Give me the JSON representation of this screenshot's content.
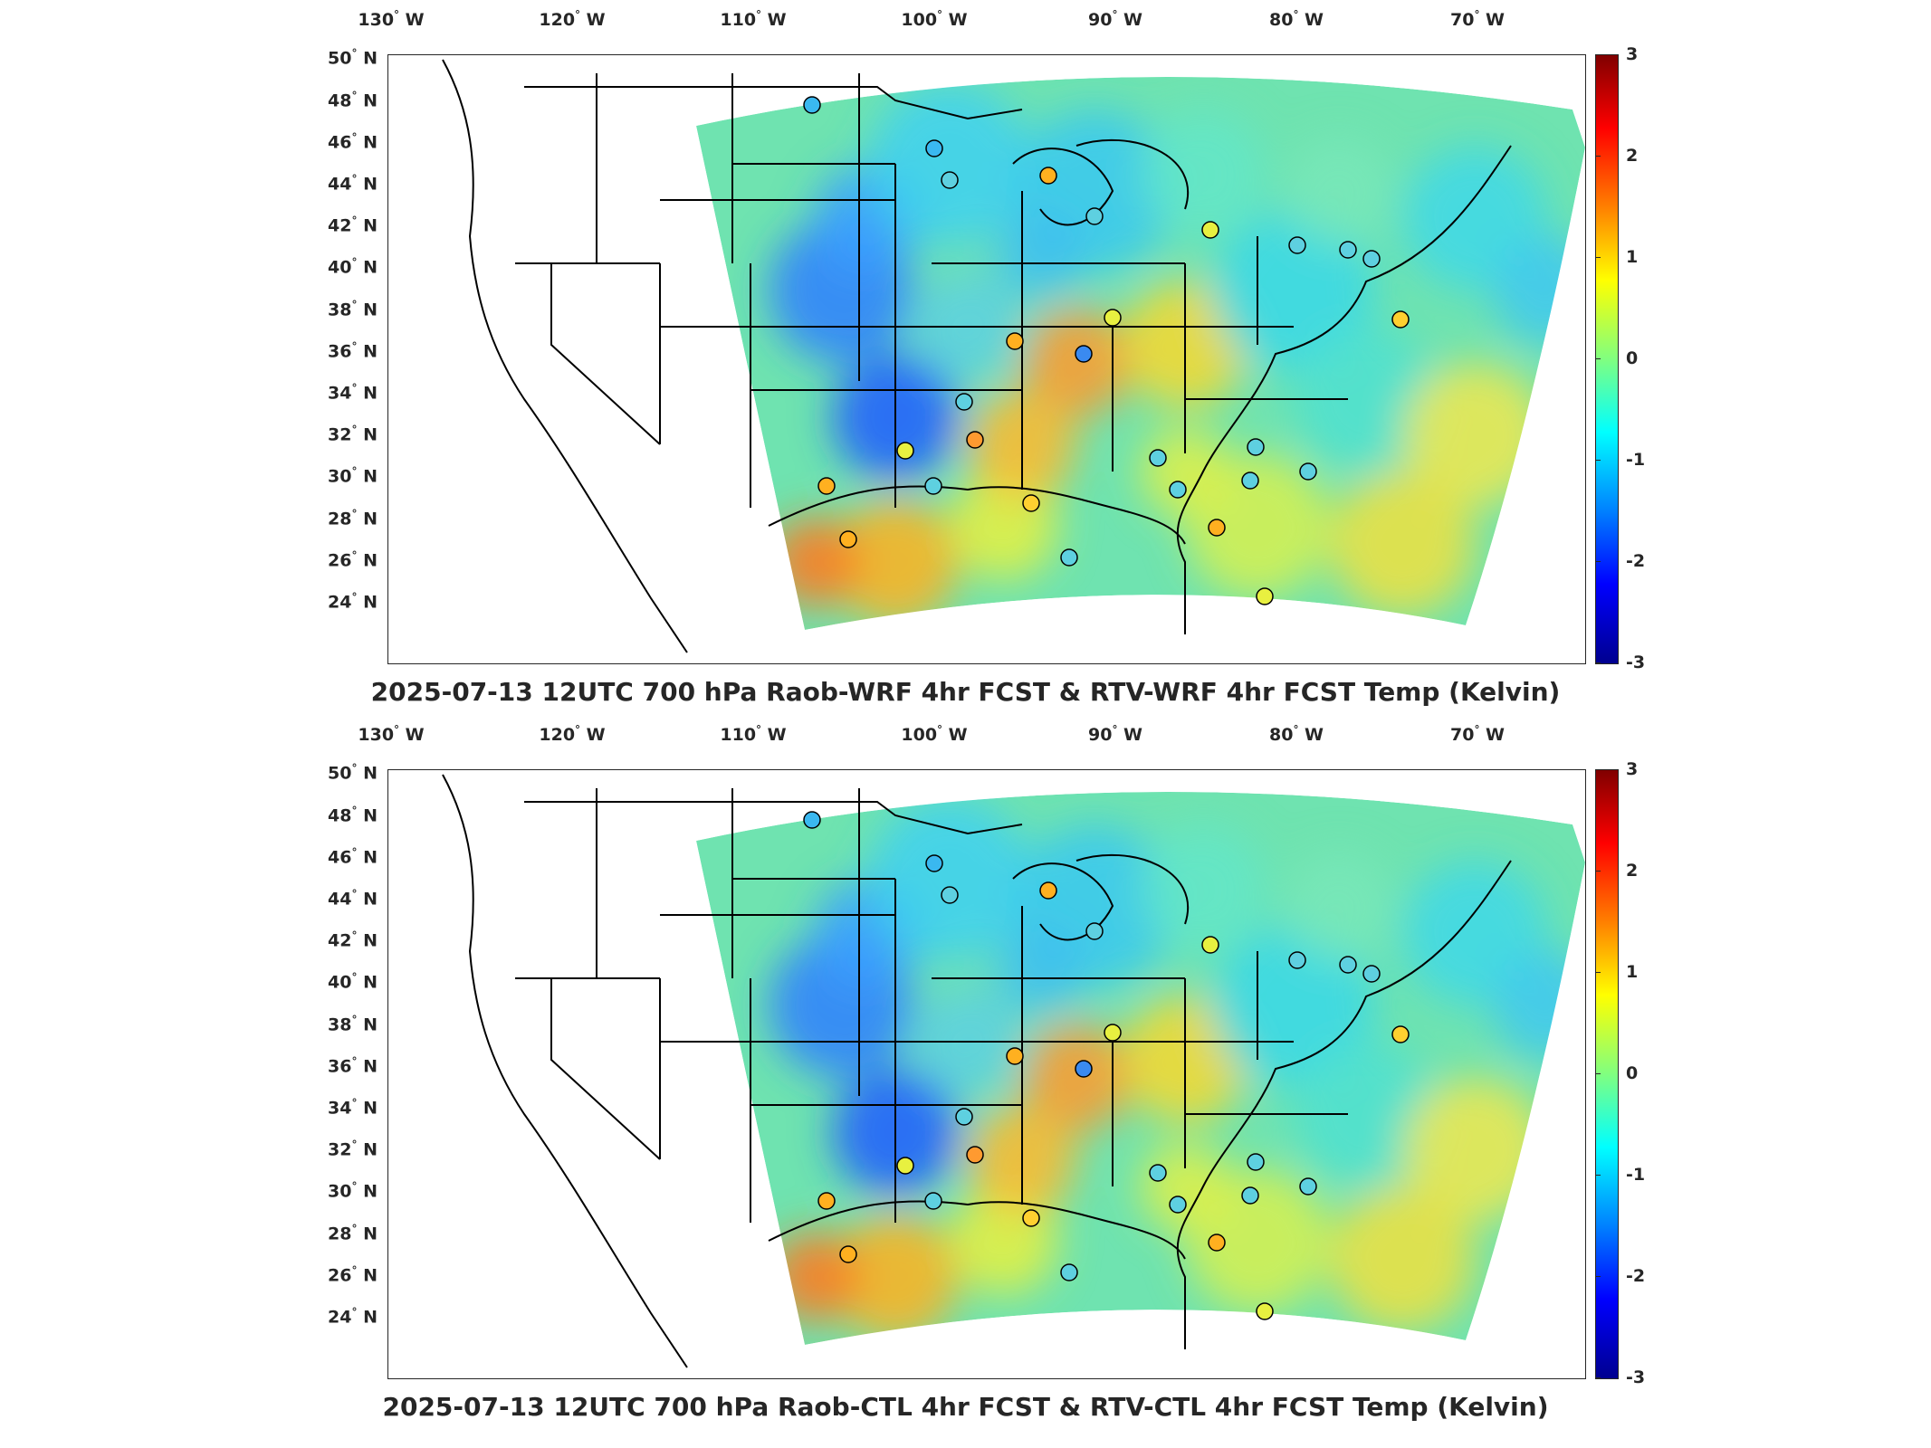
{
  "panels": [
    {
      "title": "2025-07-13 12UTC 700 hPa Raob-WRF 4hr FCST & RTV-WRF 4hr FCST Temp (Kelvin)"
    },
    {
      "title": "2025-07-13 12UTC 700 hPa Raob-CTL 4hr FCST & RTV-CTL 4hr FCST Temp (Kelvin)"
    }
  ],
  "longitude_labels": [
    {
      "deg": "130",
      "hemi": "W"
    },
    {
      "deg": "120",
      "hemi": "W"
    },
    {
      "deg": "110",
      "hemi": "W"
    },
    {
      "deg": "100",
      "hemi": "W"
    },
    {
      "deg": "90",
      "hemi": "W"
    },
    {
      "deg": "80",
      "hemi": "W"
    },
    {
      "deg": "70",
      "hemi": "W"
    }
  ],
  "latitude_labels": [
    {
      "deg": "50",
      "hemi": "N"
    },
    {
      "deg": "48",
      "hemi": "N"
    },
    {
      "deg": "46",
      "hemi": "N"
    },
    {
      "deg": "44",
      "hemi": "N"
    },
    {
      "deg": "42",
      "hemi": "N"
    },
    {
      "deg": "40",
      "hemi": "N"
    },
    {
      "deg": "38",
      "hemi": "N"
    },
    {
      "deg": "36",
      "hemi": "N"
    },
    {
      "deg": "34",
      "hemi": "N"
    },
    {
      "deg": "32",
      "hemi": "N"
    },
    {
      "deg": "30",
      "hemi": "N"
    },
    {
      "deg": "28",
      "hemi": "N"
    },
    {
      "deg": "26",
      "hemi": "N"
    },
    {
      "deg": "24",
      "hemi": "N"
    }
  ],
  "colorbar": {
    "ticks": [
      "3",
      "2",
      "1",
      "0",
      "-1",
      "-2",
      "-3"
    ],
    "colors": [
      "#800000",
      "#ff0000",
      "#ff8000",
      "#ffff00",
      "#80ff80",
      "#00ffff",
      "#0080ff",
      "#0000ff",
      "#00008f"
    ]
  }
}
